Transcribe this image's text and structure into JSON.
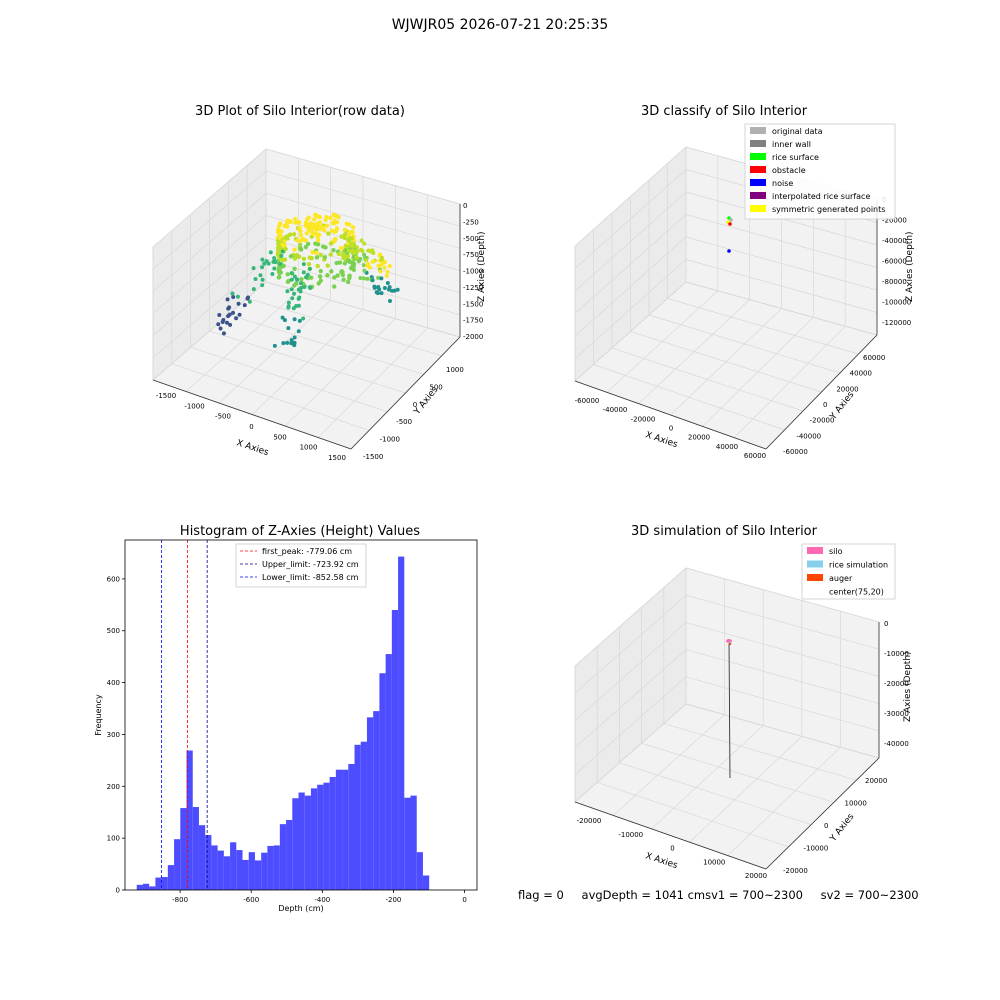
{
  "figure": {
    "suptitle": "WJWJR05 2026-07-21 20:25:35",
    "footer": {
      "flag": "flag = 0",
      "avg_depth": "avgDepth = 1041 cmsv1 = 700~2300",
      "sv2": "sv2 = 700~2300"
    }
  },
  "chart_data": [
    {
      "type": "scatter",
      "projection": "3d",
      "title": "3D Plot of Silo Interior(row data)",
      "xlabel": "X Axies",
      "ylabel": "Y Axies",
      "zlabel": "Z Axies (Depth)",
      "x_ticks": [
        "-1500",
        "-1000",
        "-500",
        "0",
        "500",
        "1000",
        "1500"
      ],
      "y_ticks": [
        "-1500",
        "-1000",
        "-500",
        "0",
        "500",
        "1000"
      ],
      "z_ticks": [
        "0",
        "-250",
        "-500",
        "-750",
        "-1000",
        "-1250",
        "-1500",
        "-1750",
        "-2000"
      ],
      "colormap": "viridis",
      "description_colors": [
        "#440154",
        "#3b528b",
        "#21918c",
        "#5ec962",
        "#fde725"
      ]
    },
    {
      "type": "scatter",
      "projection": "3d",
      "title": "3D classify of Silo Interior",
      "xlabel": "X Axies",
      "ylabel": "Y Axies",
      "zlabel": "Z Axies (Depth)",
      "x_ticks": [
        "-60000",
        "-40000",
        "-20000",
        "0",
        "20000",
        "40000",
        "60000"
      ],
      "y_ticks": [
        "-60000",
        "-40000",
        "-20000",
        "0",
        "20000",
        "40000",
        "60000"
      ],
      "z_ticks": [
        "0",
        "-20000",
        "-40000",
        "-60000",
        "-80000",
        "-100000",
        "-120000"
      ],
      "legend": [
        {
          "label": "original data",
          "color": "#b0b0b0"
        },
        {
          "label": "inner wall",
          "color": "#808080"
        },
        {
          "label": "rice surface",
          "color": "#00ff00"
        },
        {
          "label": "obstacle",
          "color": "#ff0000"
        },
        {
          "label": "noise",
          "color": "#0000ff"
        },
        {
          "label": "interpolated rice surface",
          "color": "#800080"
        },
        {
          "label": "symmetric generated points",
          "color": "#ffff00"
        }
      ]
    },
    {
      "type": "bar",
      "title": "Histogram of Z-Axies (Height) Values",
      "xlabel": "Depth (cm)",
      "ylabel": "Frequency",
      "xlim": [
        -955,
        35
      ],
      "ylim": [
        0,
        675
      ],
      "x_ticks": [
        -800,
        -600,
        -400,
        -200,
        0
      ],
      "y_ticks": [
        0,
        100,
        200,
        300,
        400,
        500,
        600
      ],
      "bar_color": "#4d4dff",
      "bins": [
        {
          "start": -922.0,
          "end": -904.5,
          "count": 10
        },
        {
          "start": -904.5,
          "end": -887.0,
          "count": 12
        },
        {
          "start": -887.0,
          "end": -869.5,
          "count": 7
        },
        {
          "start": -869.5,
          "end": -852.0,
          "count": 24
        },
        {
          "start": -852.0,
          "end": -834.5,
          "count": 25
        },
        {
          "start": -834.5,
          "end": -817.0,
          "count": 48
        },
        {
          "start": -817.0,
          "end": -799.5,
          "count": 98
        },
        {
          "start": -799.5,
          "end": -782.0,
          "count": 158
        },
        {
          "start": -782.0,
          "end": -764.5,
          "count": 269
        },
        {
          "start": -764.5,
          "end": -747.0,
          "count": 160
        },
        {
          "start": -747.0,
          "end": -729.5,
          "count": 125
        },
        {
          "start": -729.5,
          "end": -712.0,
          "count": 106
        },
        {
          "start": -712.0,
          "end": -694.5,
          "count": 86
        },
        {
          "start": -694.5,
          "end": -677.0,
          "count": 76
        },
        {
          "start": -677.0,
          "end": -659.5,
          "count": 65
        },
        {
          "start": -659.5,
          "end": -642.0,
          "count": 92
        },
        {
          "start": -642.0,
          "end": -624.5,
          "count": 77
        },
        {
          "start": -624.5,
          "end": -607.0,
          "count": 58
        },
        {
          "start": -607.0,
          "end": -589.5,
          "count": 73
        },
        {
          "start": -589.5,
          "end": -572.0,
          "count": 57
        },
        {
          "start": -572.0,
          "end": -554.5,
          "count": 72
        },
        {
          "start": -554.5,
          "end": -537.0,
          "count": 85
        },
        {
          "start": -537.0,
          "end": -519.5,
          "count": 86
        },
        {
          "start": -519.5,
          "end": -502.0,
          "count": 127
        },
        {
          "start": -502.0,
          "end": -484.5,
          "count": 135
        },
        {
          "start": -484.5,
          "end": -467.0,
          "count": 177
        },
        {
          "start": -467.0,
          "end": -449.5,
          "count": 188
        },
        {
          "start": -449.5,
          "end": -432.0,
          "count": 182
        },
        {
          "start": -432.0,
          "end": -414.5,
          "count": 196
        },
        {
          "start": -414.5,
          "end": -397.0,
          "count": 203
        },
        {
          "start": -397.0,
          "end": -379.5,
          "count": 207
        },
        {
          "start": -379.5,
          "end": -362.0,
          "count": 218
        },
        {
          "start": -362.0,
          "end": -344.5,
          "count": 232
        },
        {
          "start": -344.5,
          "end": -327.0,
          "count": 232
        },
        {
          "start": -327.0,
          "end": -309.5,
          "count": 243
        },
        {
          "start": -309.5,
          "end": -292.0,
          "count": 280
        },
        {
          "start": -292.0,
          "end": -274.5,
          "count": 286
        },
        {
          "start": -274.5,
          "end": -257.0,
          "count": 333
        },
        {
          "start": -257.0,
          "end": -239.5,
          "count": 345
        },
        {
          "start": -239.5,
          "end": -222.0,
          "count": 418
        },
        {
          "start": -222.0,
          "end": -204.5,
          "count": 455
        },
        {
          "start": -204.5,
          "end": -187.0,
          "count": 540
        },
        {
          "start": -187.0,
          "end": -169.5,
          "count": 643
        },
        {
          "start": -169.5,
          "end": -152.0,
          "count": 178
        },
        {
          "start": -152.0,
          "end": -134.5,
          "count": 182
        },
        {
          "start": -134.5,
          "end": -117.0,
          "count": 73
        },
        {
          "start": -117.0,
          "end": -99.5,
          "count": 28
        }
      ],
      "vlines": [
        {
          "label": "first_peak: -779.06 cm",
          "x": -779.06,
          "color": "#ff0000"
        },
        {
          "label": "Upper_limit: -723.92 cm",
          "x": -723.92,
          "color": "#00008b"
        },
        {
          "label": "Lower_limit: -852.58 cm",
          "x": -852.58,
          "color": "#0000ff"
        }
      ]
    },
    {
      "type": "scatter",
      "projection": "3d",
      "title": "3D simulation of Silo Interior",
      "xlabel": "X Axies",
      "ylabel": "Y Axies",
      "zlabel": "Z Axies (Depth)",
      "x_ticks": [
        "-20000",
        "-10000",
        "0",
        "10000",
        "20000"
      ],
      "y_ticks": [
        "-20000",
        "-10000",
        "0",
        "10000",
        "20000"
      ],
      "z_ticks": [
        "0",
        "-10000",
        "-20000",
        "-30000",
        "-40000"
      ],
      "legend": [
        {
          "label": "silo",
          "color": "#ff69b4"
        },
        {
          "label": "rice simulation",
          "color": "#87ceeb"
        },
        {
          "label": "auger",
          "color": "#ff4500"
        },
        {
          "label": "center(75,20)",
          "color": "#ffffff"
        }
      ]
    }
  ]
}
